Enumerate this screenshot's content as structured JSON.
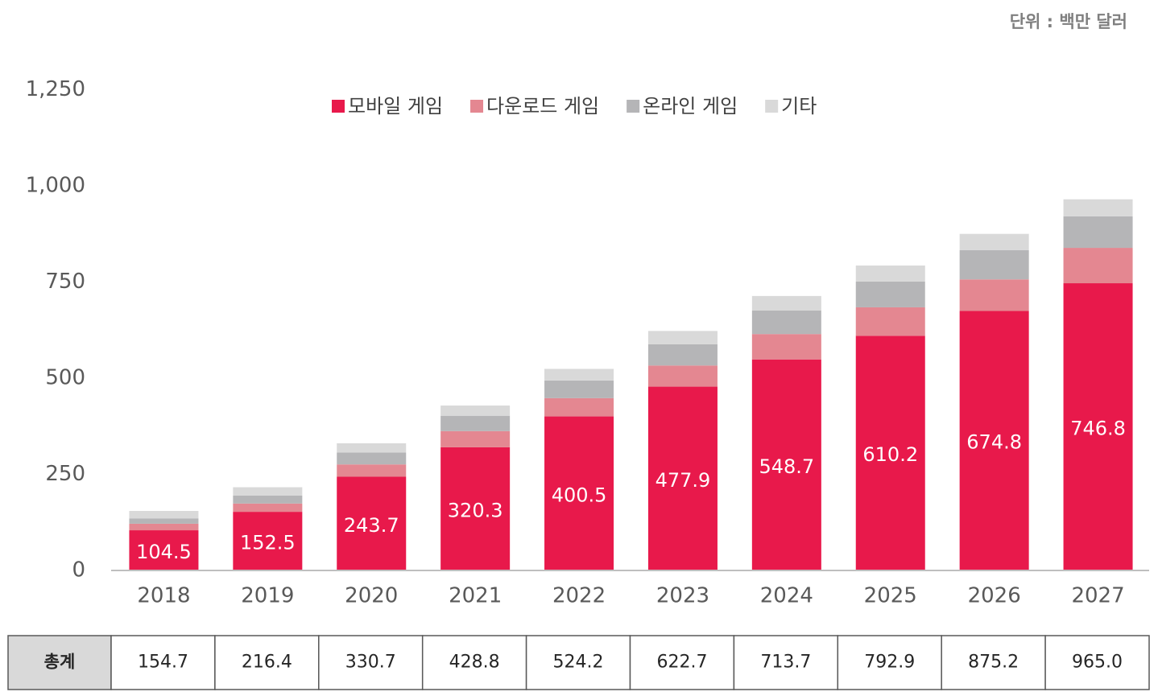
{
  "chart_data": {
    "type": "stacked_bar",
    "unit_note": "단위 : 백만 달러",
    "categories": [
      "2018",
      "2019",
      "2020",
      "2021",
      "2022",
      "2023",
      "2024",
      "2025",
      "2026",
      "2027"
    ],
    "series": [
      {
        "name": "모바일 게임",
        "color": "#e8194b",
        "values": [
          104.5,
          152.5,
          243.7,
          320.3,
          400.5,
          477.9,
          548.7,
          610.2,
          674.8,
          746.8
        ]
      },
      {
        "name": "다운로드 게임",
        "color": "#e48791",
        "values": [
          17,
          21.5,
          32,
          42,
          47.5,
          55,
          66,
          74,
          82,
          92
        ]
      },
      {
        "name": "온라인 게임",
        "color": "#b5b5b7",
        "values": [
          14,
          21,
          31,
          40,
          46,
          55,
          61,
          67,
          76,
          82
        ]
      },
      {
        "name": "기타",
        "color": "#d9d9d9",
        "values": [
          19.2,
          21.4,
          24,
          26.5,
          30.2,
          34.8,
          38,
          41.7,
          42.4,
          44.2
        ]
      }
    ],
    "ylim": [
      0,
      1250
    ],
    "yticks": [
      0,
      250,
      500,
      750,
      {
        "value": 1000,
        "label": "1,000"
      },
      {
        "value": 1250,
        "label": "1,250"
      }
    ],
    "grid": false,
    "legend": "top",
    "total_row": {
      "label": "총계",
      "values": [
        154.7,
        216.4,
        330.7,
        428.8,
        524.2,
        622.7,
        713.7,
        792.9,
        875.2,
        965.0
      ],
      "value_labels": [
        "154.7",
        "216.4",
        "330.7",
        "428.8",
        "524.2",
        "622.7",
        "713.7",
        "792.9",
        "875.2",
        "965.0"
      ]
    }
  }
}
